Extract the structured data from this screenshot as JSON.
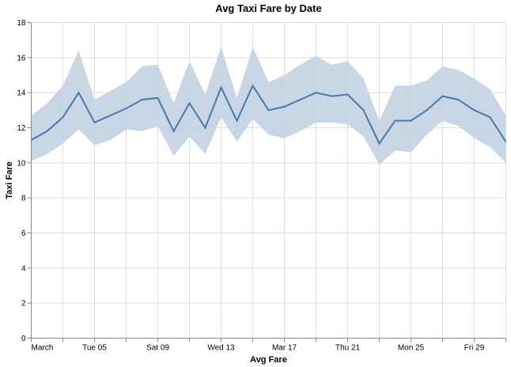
{
  "chart_data": {
    "type": "area",
    "title": "Avg Taxi Fare by Date",
    "xlabel": "Avg Fare",
    "ylabel": "Taxi Fare",
    "ylim": [
      0,
      18
    ],
    "yticks": [
      0,
      2,
      4,
      6,
      8,
      10,
      12,
      14,
      16,
      18
    ],
    "xlim": [
      "2019-03-01",
      "2019-03-31"
    ],
    "xticks": [
      {
        "date": "2019-03-01",
        "label": "March"
      },
      {
        "date": "2019-03-05",
        "label": "Tue 05"
      },
      {
        "date": "2019-03-09",
        "label": "Sat 09"
      },
      {
        "date": "2019-03-13",
        "label": "Wed 13"
      },
      {
        "date": "2019-03-17",
        "label": "Mar 17"
      },
      {
        "date": "2019-03-21",
        "label": "Thu 21"
      },
      {
        "date": "2019-03-25",
        "label": "Mon 25"
      },
      {
        "date": "2019-03-29",
        "label": "Fri 29"
      }
    ],
    "x_minor_ticks": [
      "2019-03-03",
      "2019-03-07",
      "2019-03-11",
      "2019-03-15",
      "2019-03-19",
      "2019-03-23",
      "2019-03-27",
      "2019-03-31"
    ],
    "grid": true,
    "x": [
      "2019-03-01",
      "2019-03-02",
      "2019-03-03",
      "2019-03-04",
      "2019-03-05",
      "2019-03-06",
      "2019-03-07",
      "2019-03-08",
      "2019-03-09",
      "2019-03-10",
      "2019-03-11",
      "2019-03-12",
      "2019-03-13",
      "2019-03-14",
      "2019-03-15",
      "2019-03-16",
      "2019-03-17",
      "2019-03-18",
      "2019-03-19",
      "2019-03-20",
      "2019-03-21",
      "2019-03-22",
      "2019-03-23",
      "2019-03-24",
      "2019-03-25",
      "2019-03-26",
      "2019-03-27",
      "2019-03-28",
      "2019-03-29",
      "2019-03-30",
      "2019-03-31"
    ],
    "mean": [
      11.3,
      11.8,
      12.6,
      14.0,
      12.3,
      12.7,
      13.1,
      13.6,
      13.7,
      11.8,
      13.4,
      12.0,
      14.3,
      12.4,
      14.4,
      13.0,
      13.2,
      13.6,
      14.0,
      13.8,
      13.9,
      13.0,
      11.1,
      12.4,
      12.4,
      13.0,
      13.8,
      13.6,
      13.0,
      12.6,
      11.2
    ],
    "lower": [
      10.1,
      10.5,
      11.1,
      11.9,
      11.0,
      11.3,
      11.9,
      11.8,
      12.1,
      10.4,
      11.5,
      10.5,
      12.6,
      11.2,
      12.5,
      11.6,
      11.4,
      11.8,
      12.3,
      12.3,
      12.2,
      11.5,
      9.9,
      10.7,
      10.6,
      11.6,
      12.4,
      12.1,
      11.4,
      10.9,
      10.0
    ],
    "upper": [
      12.7,
      13.4,
      14.4,
      16.4,
      13.6,
      14.1,
      14.6,
      15.5,
      15.6,
      13.4,
      15.8,
      13.9,
      16.6,
      13.7,
      16.6,
      14.6,
      15.0,
      15.6,
      16.1,
      15.6,
      15.8,
      14.8,
      12.4,
      14.4,
      14.4,
      14.7,
      15.5,
      15.3,
      14.8,
      14.2,
      12.7
    ],
    "colors": {
      "band": "#c6d4e5",
      "line": "#4c78a8"
    }
  }
}
